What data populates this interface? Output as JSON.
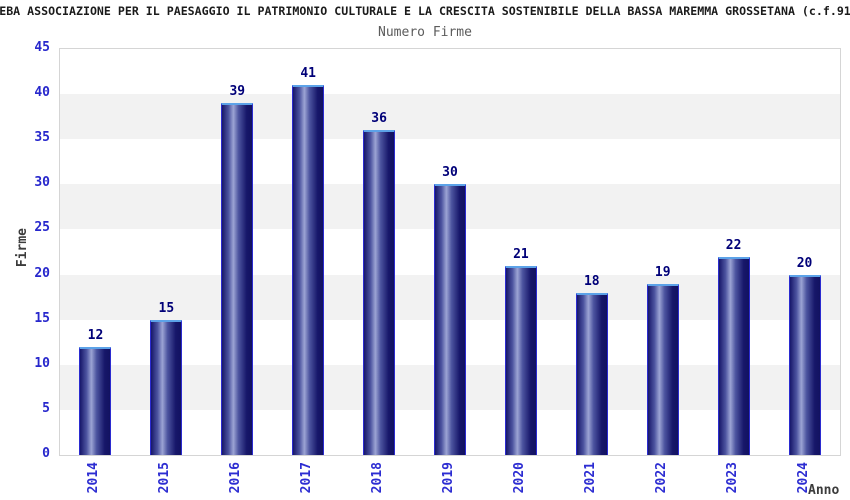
{
  "title": "EBA ASSOCIAZIONE PER IL PAESAGGIO IL PATRIMONIO CULTURALE E LA CRESCITA SOSTENIBILE DELLA BASSA MAREMMA GROSSETANA (c.f.91",
  "subtitle": "Numero Firme",
  "chart_data": {
    "type": "bar",
    "title": "Numero Firme",
    "categories": [
      "2014",
      "2015",
      "2016",
      "2017",
      "2018",
      "2019",
      "2020",
      "2021",
      "2022",
      "2023",
      "2024"
    ],
    "values": [
      12,
      15,
      39,
      41,
      36,
      30,
      21,
      18,
      19,
      22,
      20
    ],
    "value_labels": [
      "12",
      "15",
      "39",
      "41",
      "36",
      "30",
      "21",
      "18",
      "19",
      "22",
      "20"
    ],
    "xlabel": "Anno",
    "ylabel": "Firme",
    "ylim": [
      0,
      45
    ],
    "ytick_step": 5,
    "yticks": [
      0,
      5,
      10,
      15,
      20,
      25,
      30,
      35,
      40,
      45
    ],
    "grid": "alternating-horizontal-bands",
    "legend": "none"
  },
  "colors": {
    "title_text": "#1b1b1b",
    "subtitle_text": "#5c5c5c",
    "axis_title_text": "#3c3c3c",
    "tick_label_blue": "#2d2dd2",
    "value_label_navy": "#000078",
    "band_gray": "#f2f2f2",
    "band_white": "#ffffff",
    "plot_border": "#d5d5d5",
    "bar_top_border": "#5ca2e8",
    "bar_side_border": "#2b2bd0",
    "bar_dark": "#17176a",
    "bar_mid": "#4d55a0",
    "bar_light": "#9ca4d4"
  }
}
